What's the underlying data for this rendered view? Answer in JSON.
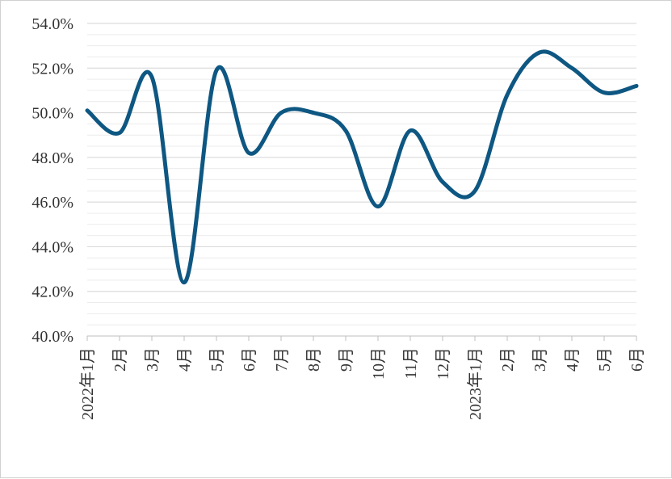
{
  "chart_data": {
    "type": "line",
    "categories": [
      "2022年1月",
      "2月",
      "3月",
      "4月",
      "5月",
      "6月",
      "7月",
      "8月",
      "9月",
      "10月",
      "11月",
      "12月",
      "2023年1月",
      "2月",
      "3月",
      "4月",
      "5月",
      "6月"
    ],
    "series": [
      {
        "values": [
          50.1,
          49.1,
          51.6,
          42.4,
          51.9,
          48.2,
          50.0,
          50.0,
          49.2,
          45.8,
          49.2,
          46.9,
          46.5,
          50.8,
          52.7,
          52.0,
          50.9,
          51.2
        ]
      }
    ],
    "ylim": [
      40,
      54
    ],
    "y_ticks": [
      "40.0%",
      "42.0%",
      "44.0%",
      "46.0%",
      "48.0%",
      "50.0%",
      "52.0%",
      "54.0%"
    ],
    "title": "",
    "xlabel": "",
    "ylabel": "",
    "grid": true,
    "line_color": "#0e5782"
  }
}
